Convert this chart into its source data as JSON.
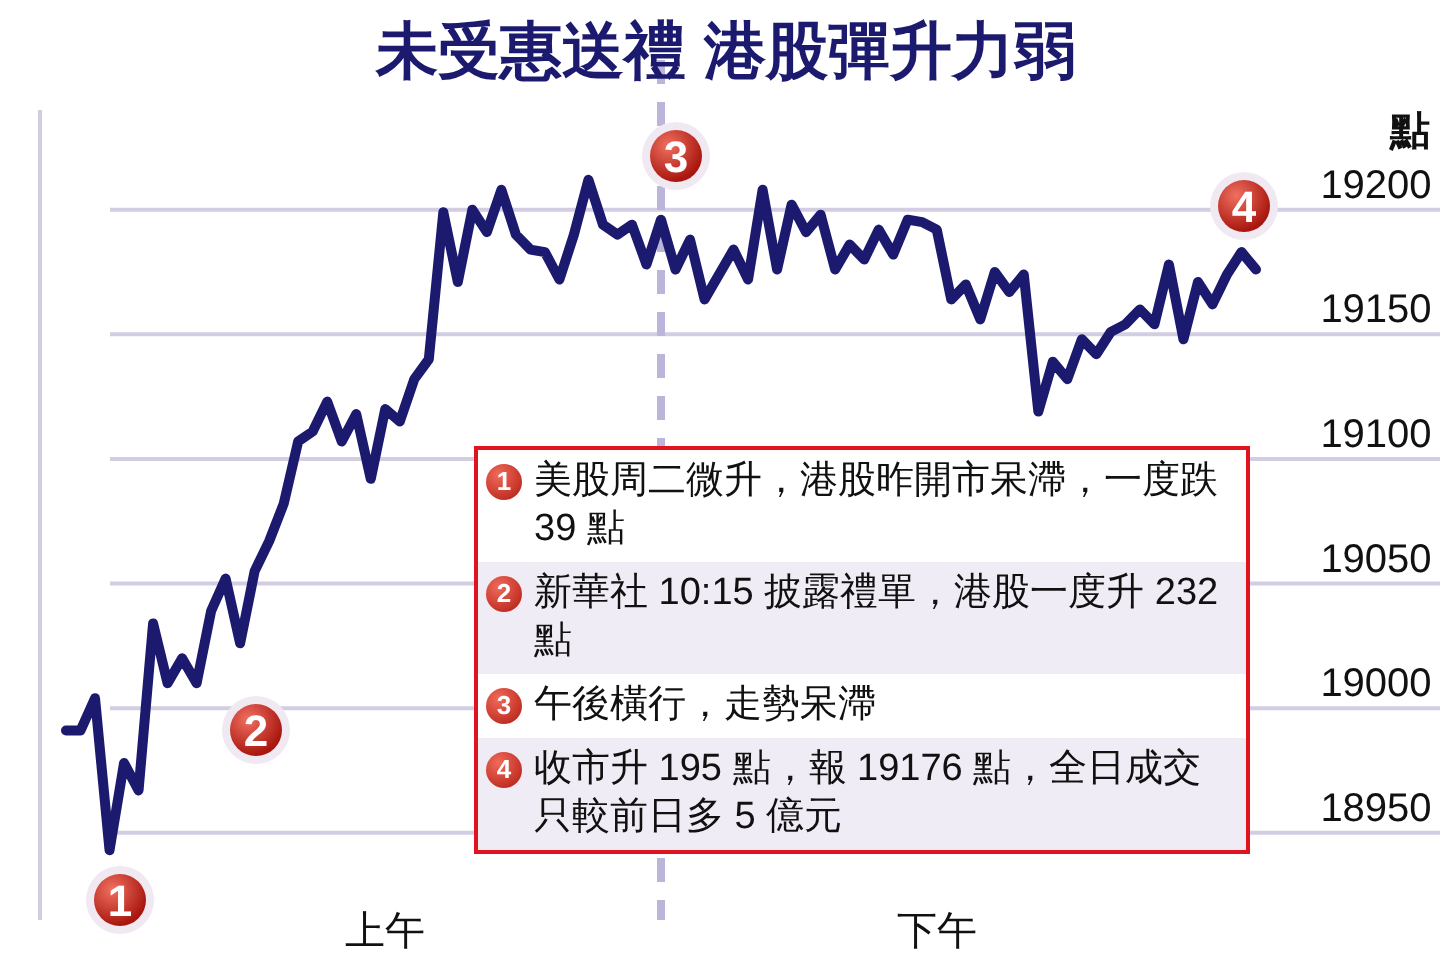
{
  "chart_data": {
    "type": "line",
    "title": "未受惠送禮 港股彈升力弱",
    "ylabel": "點",
    "categories": [
      null,
      null,
      null,
      null,
      null,
      null,
      null,
      null,
      null,
      null,
      null,
      null,
      null,
      null,
      null,
      null,
      null,
      null,
      null,
      null,
      null,
      null,
      "上午",
      null,
      null,
      null,
      null,
      null,
      null,
      null,
      null,
      null,
      null,
      null,
      null,
      null,
      null,
      null,
      null,
      null,
      null,
      null,
      null,
      null,
      null,
      null,
      null,
      null,
      null,
      null,
      null,
      null,
      null,
      null,
      null,
      null,
      null,
      null,
      null,
      null,
      "下午",
      null,
      null,
      null,
      null,
      null,
      null,
      null,
      null,
      null,
      null,
      null,
      null,
      null,
      null,
      null,
      null,
      null,
      null,
      null,
      null,
      null,
      null
    ],
    "series": [
      {
        "color": "#1b1a6e",
        "values": [
          18991,
          18991,
          19004,
          18943,
          18978,
          18967,
          19034,
          19010,
          19020,
          19010,
          19039,
          19052,
          19026,
          19055,
          19067,
          19082,
          19107,
          19111,
          19123,
          19107,
          19118,
          19092,
          19120,
          19115,
          19132,
          19140,
          19199,
          19171,
          19200,
          19191,
          19208,
          19190,
          19184,
          19183,
          19172,
          19190,
          19212,
          19194,
          19190,
          19194,
          19178,
          19196,
          19176,
          19188,
          19164,
          19174,
          19184,
          19172,
          19208,
          19176,
          19202,
          19191,
          19198,
          19176,
          19186,
          19180,
          19192,
          19182,
          19196,
          19195,
          19192,
          19164,
          19170,
          19156,
          19175,
          19167,
          19174,
          19119,
          19139,
          19132,
          19148,
          19142,
          19151,
          19154,
          19160,
          19154,
          19178,
          19148,
          19171,
          19162,
          19174,
          19183,
          19176
        ]
      }
    ],
    "ylim": [
      18915,
      19240
    ],
    "yticks": [
      18950,
      19000,
      19050,
      19100,
      19150,
      19200
    ],
    "grid": "y",
    "annotations": [
      "1",
      "2",
      "3",
      "4",
      "美股周二微升，港股昨開市呆滯，一度跌 39 點",
      "新華社 10:15 披露禮單，港股一度升 232 點",
      "午後橫行，走勢呆滯",
      "收市升 195 點，報 19176 點，全日成交只較前日多 5 億元"
    ]
  }
}
